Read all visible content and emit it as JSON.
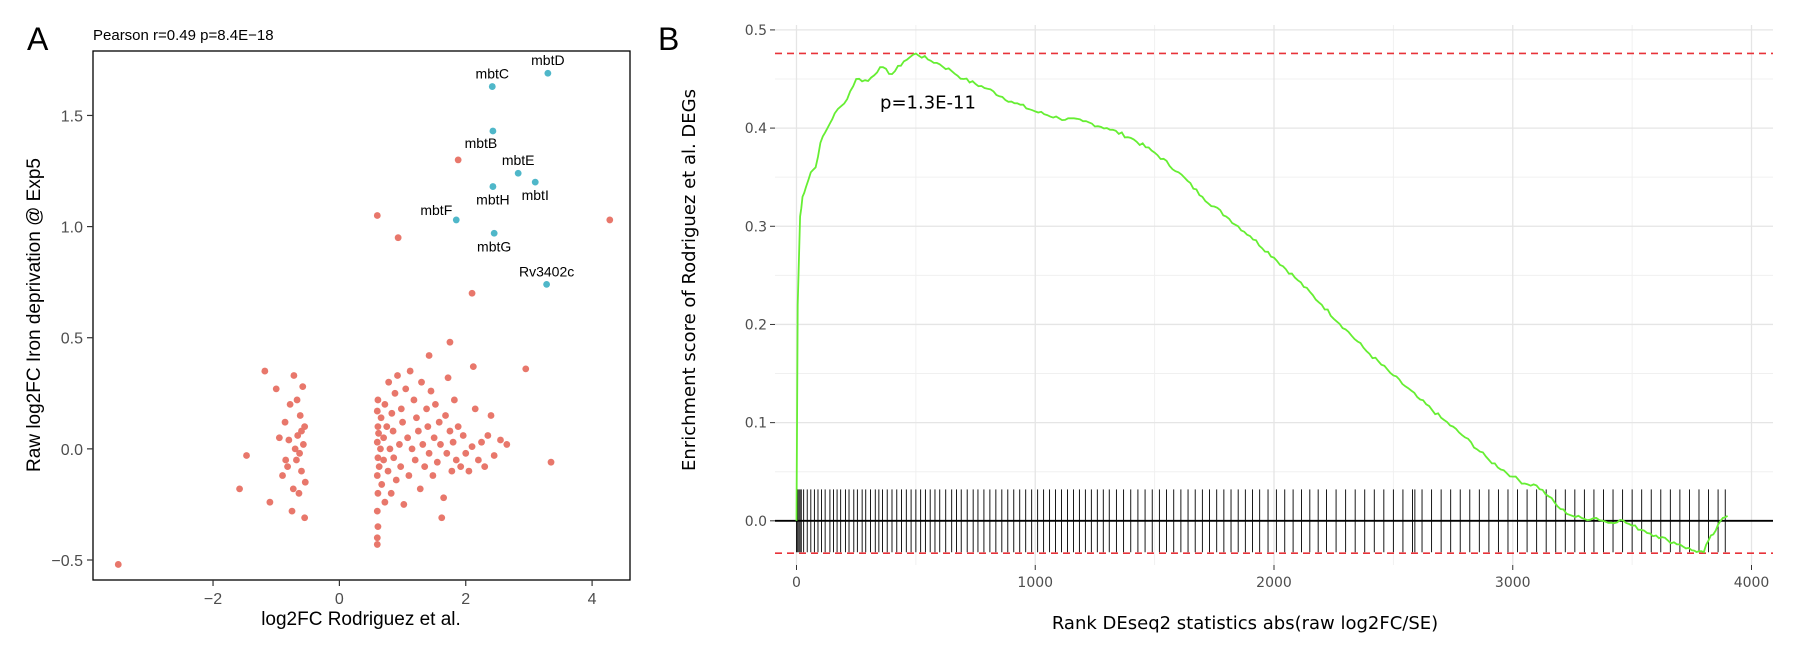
{
  "chart_data": [
    {
      "type": "scatter",
      "panel_label": "A",
      "stat_text": "Pearson r=0.49  p=8.4E−18",
      "xlabel": "log2FC Rodriguez et al.",
      "ylabel": "Raw log2FC Iron deprivation @ Exp5",
      "xlim": [
        -3.9,
        4.6
      ],
      "ylim": [
        -0.59,
        1.79
      ],
      "xticks": [
        -2,
        0,
        2,
        4
      ],
      "xtick_labels": [
        "−2",
        "0",
        "2",
        "4"
      ],
      "yticks": [
        -0.5,
        0.0,
        0.5,
        1.0,
        1.5
      ],
      "ytick_labels": [
        "−0.5",
        "0.0",
        "0.5",
        "1.0",
        "1.5"
      ],
      "grid": false,
      "colors": {
        "other": "#e8776b",
        "labeled": "#4fb7c9"
      },
      "labeled_points": [
        {
          "label": "mbtD",
          "x": 3.3,
          "y": 1.69,
          "anchor": "above"
        },
        {
          "label": "mbtC",
          "x": 2.42,
          "y": 1.63,
          "anchor": "above"
        },
        {
          "label": "mbtB",
          "x": 2.43,
          "y": 1.43,
          "anchor": "below-left"
        },
        {
          "label": "mbtE",
          "x": 2.83,
          "y": 1.24,
          "anchor": "above"
        },
        {
          "label": "mbtI",
          "x": 3.1,
          "y": 1.2,
          "anchor": "below"
        },
        {
          "label": "mbtH",
          "x": 2.43,
          "y": 1.18,
          "anchor": "below"
        },
        {
          "label": "mbtF",
          "x": 1.85,
          "y": 1.03,
          "anchor": "left"
        },
        {
          "label": "mbtG",
          "x": 2.45,
          "y": 0.97,
          "anchor": "below"
        },
        {
          "label": "Rv3402c",
          "x": 3.28,
          "y": 0.74,
          "anchor": "above"
        }
      ],
      "points": [
        [
          -3.5,
          -0.52
        ],
        [
          1.88,
          1.3
        ],
        [
          0.6,
          1.05
        ],
        [
          0.93,
          0.95
        ],
        [
          4.28,
          1.03
        ],
        [
          2.1,
          0.7
        ],
        [
          2.95,
          0.36
        ],
        [
          1.42,
          0.42
        ],
        [
          1.75,
          0.48
        ],
        [
          2.12,
          0.37
        ],
        [
          3.35,
          -0.06
        ],
        [
          -1.47,
          -0.03
        ],
        [
          -1.58,
          -0.18
        ],
        [
          -1.18,
          0.35
        ],
        [
          -1.1,
          -0.24
        ],
        [
          -1.0,
          0.27
        ],
        [
          -0.95,
          0.05
        ],
        [
          -0.9,
          -0.12
        ],
        [
          -0.86,
          0.12
        ],
        [
          -0.82,
          -0.08
        ],
        [
          -0.78,
          0.2
        ],
        [
          -0.75,
          -0.28
        ],
        [
          -0.72,
          0.33
        ],
        [
          -0.7,
          0.0
        ],
        [
          -0.68,
          -0.05
        ],
        [
          -0.66,
          0.06
        ],
        [
          -0.64,
          -0.2
        ],
        [
          -0.62,
          0.15
        ],
        [
          -0.6,
          -0.1
        ],
        [
          -0.58,
          0.28
        ],
        [
          -0.57,
          0.02
        ],
        [
          -0.55,
          -0.31
        ],
        [
          -0.55,
          0.1
        ],
        [
          -0.54,
          -0.15
        ],
        [
          -0.6,
          0.08
        ],
        [
          -0.63,
          -0.02
        ],
        [
          -0.67,
          0.22
        ],
        [
          -0.73,
          -0.18
        ],
        [
          -0.8,
          0.04
        ],
        [
          -0.85,
          -0.05
        ],
        [
          0.6,
          -0.43
        ],
        [
          0.6,
          -0.4
        ],
        [
          0.61,
          -0.35
        ],
        [
          0.6,
          -0.28
        ],
        [
          0.61,
          -0.2
        ],
        [
          0.6,
          -0.12
        ],
        [
          0.61,
          -0.04
        ],
        [
          0.6,
          0.03
        ],
        [
          0.61,
          0.1
        ],
        [
          0.6,
          0.17
        ],
        [
          0.61,
          0.22
        ],
        [
          0.62,
          0.07
        ],
        [
          0.63,
          -0.08
        ],
        [
          0.65,
          0.0
        ],
        [
          0.66,
          0.14
        ],
        [
          0.67,
          -0.16
        ],
        [
          0.7,
          0.05
        ],
        [
          0.7,
          -0.05
        ],
        [
          0.72,
          0.2
        ],
        [
          0.72,
          -0.24
        ],
        [
          0.75,
          0.1
        ],
        [
          0.77,
          -0.1
        ],
        [
          0.78,
          0.3
        ],
        [
          0.8,
          0.0
        ],
        [
          0.82,
          -0.2
        ],
        [
          0.83,
          0.16
        ],
        [
          0.85,
          0.08
        ],
        [
          0.86,
          -0.04
        ],
        [
          0.88,
          0.25
        ],
        [
          0.9,
          -0.14
        ],
        [
          0.92,
          0.33
        ],
        [
          0.95,
          0.02
        ],
        [
          0.97,
          -0.08
        ],
        [
          0.98,
          0.18
        ],
        [
          1.0,
          0.12
        ],
        [
          1.02,
          -0.25
        ],
        [
          1.05,
          0.27
        ],
        [
          1.08,
          0.05
        ],
        [
          1.1,
          -0.12
        ],
        [
          1.12,
          0.35
        ],
        [
          1.15,
          0.0
        ],
        [
          1.18,
          0.22
        ],
        [
          1.2,
          -0.05
        ],
        [
          1.22,
          0.14
        ],
        [
          1.25,
          0.08
        ],
        [
          1.28,
          -0.18
        ],
        [
          1.3,
          0.3
        ],
        [
          1.32,
          0.02
        ],
        [
          1.35,
          -0.08
        ],
        [
          1.38,
          0.18
        ],
        [
          1.4,
          0.1
        ],
        [
          1.42,
          -0.02
        ],
        [
          1.45,
          0.26
        ],
        [
          1.48,
          -0.12
        ],
        [
          1.5,
          0.05
        ],
        [
          1.52,
          0.2
        ],
        [
          1.55,
          -0.06
        ],
        [
          1.58,
          0.12
        ],
        [
          1.6,
          0.02
        ],
        [
          1.62,
          -0.31
        ],
        [
          1.65,
          -0.22
        ],
        [
          1.68,
          0.15
        ],
        [
          1.7,
          -0.02
        ],
        [
          1.72,
          0.32
        ],
        [
          1.75,
          0.08
        ],
        [
          1.78,
          -0.1
        ],
        [
          1.8,
          0.03
        ],
        [
          1.82,
          0.22
        ],
        [
          1.85,
          -0.05
        ],
        [
          1.88,
          0.1
        ],
        [
          1.92,
          -0.08
        ],
        [
          1.96,
          0.06
        ],
        [
          2.0,
          -0.02
        ],
        [
          2.05,
          -0.1
        ],
        [
          2.1,
          0.01
        ],
        [
          2.15,
          0.18
        ],
        [
          2.2,
          -0.05
        ],
        [
          2.25,
          0.03
        ],
        [
          2.3,
          -0.08
        ],
        [
          2.35,
          0.06
        ],
        [
          2.4,
          0.15
        ],
        [
          2.45,
          -0.03
        ],
        [
          2.55,
          0.04
        ],
        [
          2.65,
          0.02
        ]
      ]
    },
    {
      "type": "line",
      "panel_label": "B",
      "annotation": "p=1.3E-11",
      "xlabel": "Rank DEseq2 statistics abs(raw log2FC/SE)",
      "ylabel": "Enrichment score of Rodriguez et al.  DEGs",
      "xlim": [
        -90,
        4090
      ],
      "ylim": [
        -0.045,
        0.505
      ],
      "xticks": [
        0,
        1000,
        2000,
        3000,
        4000
      ],
      "xtick_labels": [
        "0",
        "1000",
        "2000",
        "3000",
        "4000"
      ],
      "yticks": [
        0.0,
        0.1,
        0.2,
        0.3,
        0.4,
        0.5
      ],
      "ytick_labels": [
        "0.0",
        "0.1",
        "0.2",
        "0.3",
        "0.4",
        "0.5"
      ],
      "grid": true,
      "max_es": 0.476,
      "min_es": -0.033,
      "colors": {
        "curve": "#66ee33",
        "dashed": "#e8333a",
        "rug": "#000000",
        "grid": "#e5e5e5"
      },
      "series": [
        {
          "x": [
            0,
            5,
            15,
            25,
            40,
            60,
            80,
            100,
            130,
            160,
            200,
            250,
            300,
            350,
            400,
            450,
            500,
            550,
            600,
            650,
            700,
            800,
            900,
            1000,
            1100,
            1200,
            1300,
            1400,
            1500,
            1600,
            1700,
            1800,
            1900,
            2000,
            2100,
            2200,
            2300,
            2400,
            2500,
            2600,
            2700,
            2800,
            2900,
            3000,
            3050,
            3100,
            3150,
            3200,
            3250,
            3300,
            3350,
            3400,
            3450,
            3500,
            3550,
            3600,
            3650,
            3700,
            3750,
            3780,
            3800,
            3820,
            3850,
            3880,
            3900
          ],
          "values": [
            0.0,
            0.22,
            0.31,
            0.33,
            0.34,
            0.355,
            0.36,
            0.385,
            0.4,
            0.415,
            0.425,
            0.45,
            0.448,
            0.462,
            0.455,
            0.468,
            0.476,
            0.47,
            0.465,
            0.458,
            0.45,
            0.44,
            0.427,
            0.417,
            0.41,
            0.407,
            0.4,
            0.39,
            0.375,
            0.355,
            0.33,
            0.31,
            0.29,
            0.268,
            0.245,
            0.22,
            0.195,
            0.17,
            0.148,
            0.126,
            0.105,
            0.085,
            0.062,
            0.045,
            0.038,
            0.036,
            0.025,
            0.012,
            0.005,
            0.002,
            0.003,
            -0.002,
            0.001,
            -0.005,
            -0.01,
            -0.015,
            -0.02,
            -0.024,
            -0.03,
            -0.031,
            -0.032,
            -0.02,
            -0.01,
            0.003,
            0.005
          ]
        }
      ],
      "rug_ranks": [
        0,
        5,
        10,
        15,
        20,
        30,
        45,
        60,
        75,
        90,
        105,
        120,
        140,
        155,
        170,
        185,
        205,
        220,
        240,
        255,
        275,
        290,
        310,
        330,
        345,
        360,
        380,
        400,
        420,
        440,
        460,
        480,
        500,
        520,
        540,
        560,
        580,
        600,
        625,
        650,
        670,
        690,
        715,
        740,
        760,
        785,
        810,
        835,
        860,
        885,
        910,
        935,
        960,
        985,
        1010,
        1035,
        1060,
        1085,
        1110,
        1135,
        1160,
        1185,
        1210,
        1235,
        1260,
        1285,
        1310,
        1340,
        1370,
        1400,
        1430,
        1460,
        1490,
        1520,
        1550,
        1580,
        1610,
        1640,
        1670,
        1700,
        1730,
        1760,
        1790,
        1820,
        1850,
        1880,
        1910,
        1940,
        1975,
        2010,
        2045,
        2080,
        2115,
        2150,
        2185,
        2220,
        2260,
        2300,
        2340,
        2380,
        2420,
        2460,
        2500,
        2540,
        2580,
        2590,
        2620,
        2660,
        2700,
        2740,
        2780,
        2820,
        2860,
        2900,
        2940,
        2980,
        3020,
        3060,
        3100,
        3140,
        3180,
        3220,
        3260,
        3300,
        3340,
        3380,
        3420,
        3460,
        3500,
        3540,
        3580,
        3620,
        3660,
        3700,
        3740,
        3780,
        3820,
        3860,
        3890
      ]
    }
  ]
}
